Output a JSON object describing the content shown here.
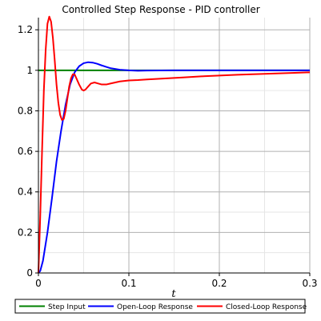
{
  "chart_data": {
    "type": "line",
    "title": "Controlled Step Response - PID controller",
    "xlabel": "t",
    "ylabel": "",
    "xlim": [
      0,
      0.3
    ],
    "ylim": [
      0,
      1.26
    ],
    "grid": true,
    "legend_position": "bottom",
    "x_ticks": [
      0,
      0.1,
      0.2,
      0.3
    ],
    "x_tick_labels": [
      "0",
      "0.1",
      "0.2",
      "0.3"
    ],
    "y_ticks": [
      0,
      0.2,
      0.4,
      0.6,
      0.8,
      1,
      1.2
    ],
    "y_tick_labels": [
      "0",
      "0.2",
      "0.4",
      "0.6",
      "0.8",
      "1",
      "1.2"
    ],
    "series": [
      {
        "name": "Step Input",
        "color": "#008000",
        "x": [
          0,
          0.3
        ],
        "y": [
          1,
          1
        ]
      },
      {
        "name": "Open-Loop Response",
        "color": "#0000ff",
        "x": [
          0,
          0.002,
          0.005,
          0.01,
          0.015,
          0.02,
          0.025,
          0.03,
          0.035,
          0.04,
          0.045,
          0.05,
          0.055,
          0.06,
          0.065,
          0.07,
          0.075,
          0.08,
          0.09,
          0.1,
          0.11,
          0.12,
          0.15,
          0.2,
          0.25,
          0.3
        ],
        "y": [
          0,
          0.01,
          0.06,
          0.2,
          0.37,
          0.55,
          0.7,
          0.83,
          0.93,
          0.99,
          1.02,
          1.035,
          1.04,
          1.038,
          1.032,
          1.024,
          1.017,
          1.01,
          1.003,
          1.0,
          0.998,
          0.999,
          1.0,
          1.0,
          1.0,
          1.0
        ]
      },
      {
        "name": "Closed-Loop Response",
        "color": "#ff0000",
        "x": [
          0,
          0.002,
          0.004,
          0.006,
          0.008,
          0.01,
          0.012,
          0.014,
          0.016,
          0.018,
          0.02,
          0.022,
          0.024,
          0.026,
          0.028,
          0.03,
          0.032,
          0.034,
          0.036,
          0.038,
          0.04,
          0.042,
          0.045,
          0.048,
          0.05,
          0.052,
          0.055,
          0.058,
          0.062,
          0.066,
          0.07,
          0.075,
          0.08,
          0.085,
          0.09,
          0.1,
          0.11,
          0.12,
          0.14,
          0.16,
          0.18,
          0.2,
          0.22,
          0.24,
          0.26,
          0.28,
          0.3
        ],
        "y": [
          0,
          0.28,
          0.6,
          0.9,
          1.1,
          1.23,
          1.265,
          1.24,
          1.16,
          1.05,
          0.93,
          0.84,
          0.78,
          0.755,
          0.76,
          0.8,
          0.86,
          0.92,
          0.96,
          0.98,
          0.98,
          0.96,
          0.93,
          0.905,
          0.9,
          0.905,
          0.92,
          0.935,
          0.94,
          0.935,
          0.93,
          0.93,
          0.935,
          0.94,
          0.945,
          0.95,
          0.952,
          0.955,
          0.96,
          0.965,
          0.97,
          0.974,
          0.978,
          0.981,
          0.984,
          0.987,
          0.99
        ]
      }
    ]
  }
}
